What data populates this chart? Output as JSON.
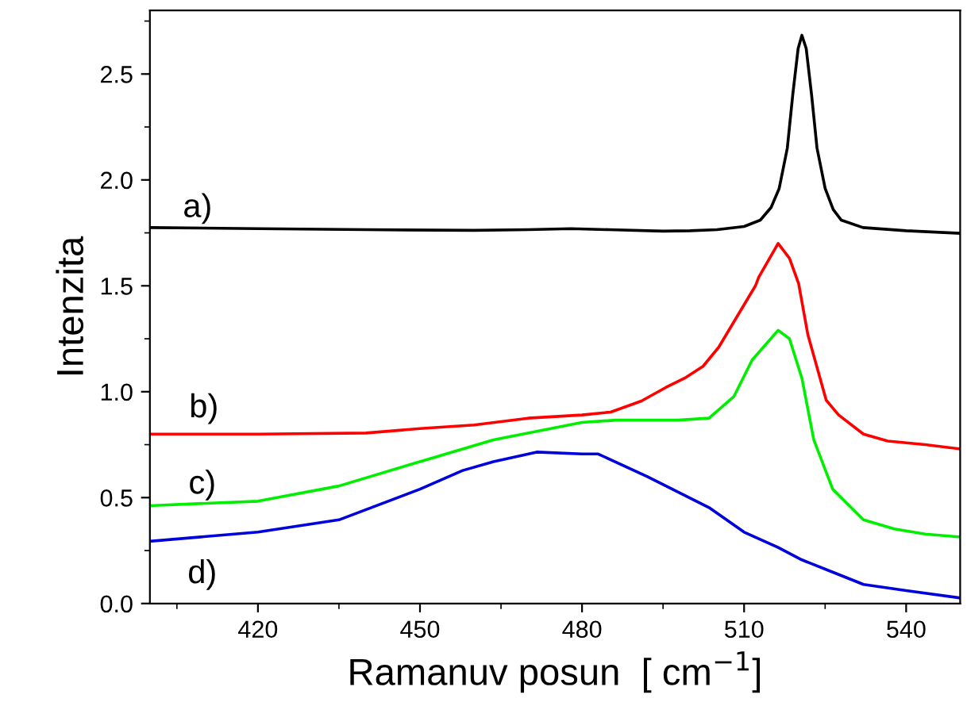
{
  "chart_data": {
    "type": "line",
    "xlabel": "Ramanuv posun  [ cm$^{−1}$]",
    "ylabel": "Intenzita",
    "xlim": [
      400,
      550
    ],
    "xticks": [
      420,
      450,
      480,
      510,
      540
    ],
    "ylim": [
      0,
      2.8
    ],
    "yticks": [
      {
        "value": 0,
        "label": "0.0"
      },
      0.5,
      {
        "value": 1,
        "label": "1.0"
      },
      1.5,
      {
        "value": 2,
        "label": "2.0"
      },
      2.5
    ],
    "grid": false,
    "legend": false,
    "marker": "none",
    "line_style": "solid",
    "series": [
      {
        "name": "a)",
        "color": "#000000",
        "x": [
          400,
          420,
          440,
          460,
          470,
          478,
          485,
          495,
          500,
          505,
          510,
          513,
          515,
          516.5,
          518,
          519,
          520,
          520.7,
          521.5,
          522.5,
          523.5,
          525,
          526.5,
          528,
          532,
          540,
          550
        ],
        "values": [
          1.775,
          1.77,
          1.765,
          1.762,
          1.765,
          1.77,
          1.765,
          1.758,
          1.76,
          1.765,
          1.78,
          1.81,
          1.87,
          1.96,
          2.15,
          2.4,
          2.62,
          2.683,
          2.62,
          2.4,
          2.15,
          1.96,
          1.86,
          1.81,
          1.775,
          1.76,
          1.748
        ]
      },
      {
        "name": "b)",
        "color": "#ff0000",
        "x": [
          400,
          420,
          440,
          450,
          460,
          470,
          480,
          485.3,
          491,
          495.5,
          499,
          502.4,
          505.3,
          508.7,
          512.1,
          512.7,
          516.3,
          518.4,
          520.1,
          521.8,
          525.2,
          527.5,
          532.1,
          536.6,
          543.5,
          550
        ],
        "values": [
          0.8,
          0.8,
          0.805,
          0.826,
          0.843,
          0.875,
          0.89,
          0.904,
          0.956,
          1.02,
          1.064,
          1.12,
          1.21,
          1.355,
          1.5,
          1.54,
          1.7,
          1.63,
          1.51,
          1.27,
          0.96,
          0.89,
          0.8,
          0.767,
          0.75,
          0.73
        ]
      },
      {
        "name": "c)",
        "color": "#00ee00",
        "x": [
          400,
          420,
          435,
          450,
          463.6,
          480,
          486.4,
          497.8,
          503.5,
          508.1,
          511.5,
          516.3,
          518.4,
          520.7,
          522.9,
          526.4,
          532.1,
          537.8,
          543.5,
          550
        ],
        "values": [
          0.462,
          0.483,
          0.555,
          0.67,
          0.773,
          0.855,
          0.866,
          0.866,
          0.875,
          0.977,
          1.15,
          1.29,
          1.25,
          1.064,
          0.773,
          0.54,
          0.395,
          0.352,
          0.328,
          0.314
        ]
      },
      {
        "name": "d)",
        "color": "#0000dd",
        "x": [
          400,
          420,
          435,
          450,
          457.9,
          463.6,
          471.6,
          480,
          483,
          492.1,
          497.8,
          503.5,
          510,
          516.3,
          520.7,
          526.4,
          532.1,
          540,
          550
        ],
        "values": [
          0.294,
          0.337,
          0.395,
          0.54,
          0.628,
          0.67,
          0.715,
          0.706,
          0.706,
          0.599,
          0.526,
          0.453,
          0.337,
          0.265,
          0.206,
          0.148,
          0.09,
          0.061,
          0.026
        ]
      }
    ]
  }
}
